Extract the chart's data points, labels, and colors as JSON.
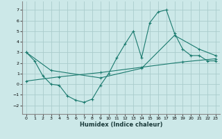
{
  "title": "",
  "xlabel": "Humidex (Indice chaleur)",
  "background_color": "#cce8e8",
  "grid_color": "#aacccc",
  "line_color": "#1a7a6e",
  "xlim": [
    -0.5,
    23.5
  ],
  "ylim": [
    -2.8,
    7.8
  ],
  "xticks": [
    0,
    1,
    2,
    3,
    4,
    5,
    6,
    7,
    8,
    9,
    10,
    11,
    12,
    13,
    14,
    15,
    16,
    17,
    18,
    19,
    20,
    21,
    22,
    23
  ],
  "yticks": [
    -2,
    -1,
    0,
    1,
    2,
    3,
    4,
    5,
    6,
    7
  ],
  "line1_x": [
    0,
    1,
    2,
    3,
    4,
    5,
    6,
    7,
    8,
    9,
    10,
    11,
    12,
    13,
    14,
    15,
    16,
    17,
    18,
    19,
    20,
    21,
    22,
    23
  ],
  "line1_y": [
    3.0,
    2.2,
    0.8,
    0.0,
    -0.1,
    -1.1,
    -1.5,
    -1.7,
    -1.4,
    -0.1,
    1.0,
    2.5,
    3.8,
    5.0,
    2.5,
    5.8,
    6.8,
    7.0,
    4.8,
    3.3,
    2.7,
    2.7,
    2.2,
    2.2
  ],
  "line2_x": [
    0,
    3,
    9,
    14,
    18,
    21,
    23
  ],
  "line2_y": [
    3.0,
    1.3,
    0.6,
    1.5,
    4.6,
    3.3,
    2.7
  ],
  "line3_x": [
    0,
    4,
    9,
    14,
    19,
    23
  ],
  "line3_y": [
    0.3,
    0.7,
    1.1,
    1.6,
    2.1,
    2.4
  ]
}
